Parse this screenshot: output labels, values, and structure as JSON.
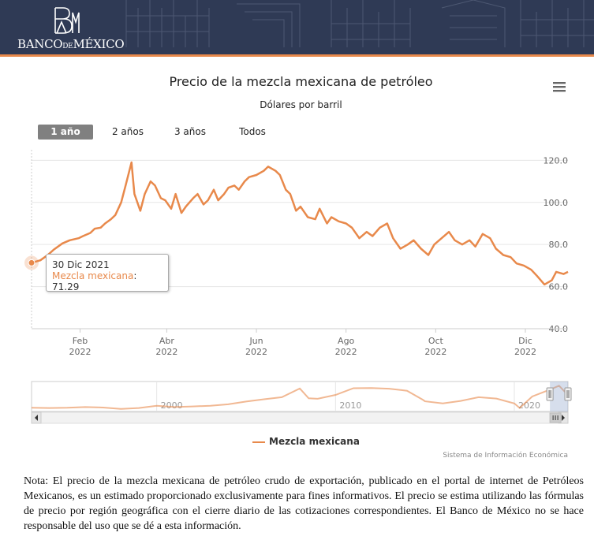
{
  "header": {
    "brand": "BANCO DE MÉXICO",
    "brand_parts": [
      "BANCO",
      "DE",
      "MÉXICO"
    ],
    "background_color": "#2f3a55",
    "accent_color": "#e8894b"
  },
  "menu_icon": "hamburger-menu-icon",
  "range_selector": {
    "buttons": [
      "1 año",
      "2 años",
      "3 años",
      "Todos"
    ],
    "selected": "1 año"
  },
  "tooltip": {
    "date": "30 Dic 2021",
    "series": "Mezcla mexicana",
    "value": "71.29"
  },
  "legend": {
    "label": "Mezcla mexicana"
  },
  "credits": "Sistema de Información Económica",
  "note": "Nota: El precio de la mezcla mexicana de petróleo crudo de exportación, publicado en el portal de internet de Petróleos Mexicanos, es un estimado proporcionado exclusivamente para fines informativos. El precio se estima utilizando las fórmulas de precio por región geográfica con el cierre diario de las cotizaciones correspondientes. El Banco de México no se hace responsable del uso que se dé a esta información.",
  "chart_data": {
    "type": "line",
    "title": "Precio de la mezcla mexicana de petróleo",
    "subtitle": "Dólares por barril",
    "series_color": "#e8894b",
    "series": [
      {
        "name": "Mezcla mexicana",
        "x": [
          "2021-12-30",
          "2022-01-05",
          "2022-01-10",
          "2022-01-14",
          "2022-01-20",
          "2022-01-25",
          "2022-01-31",
          "2022-02-03",
          "2022-02-08",
          "2022-02-11",
          "2022-02-15",
          "2022-02-18",
          "2022-02-22",
          "2022-02-25",
          "2022-03-01",
          "2022-03-04",
          "2022-03-08",
          "2022-03-10",
          "2022-03-14",
          "2022-03-17",
          "2022-03-21",
          "2022-03-24",
          "2022-03-28",
          "2022-03-31",
          "2022-04-04",
          "2022-04-07",
          "2022-04-11",
          "2022-04-14",
          "2022-04-19",
          "2022-04-22",
          "2022-04-26",
          "2022-04-29",
          "2022-05-03",
          "2022-05-06",
          "2022-05-10",
          "2022-05-13",
          "2022-05-17",
          "2022-05-20",
          "2022-05-24",
          "2022-05-27",
          "2022-06-01",
          "2022-06-06",
          "2022-06-09",
          "2022-06-14",
          "2022-06-17",
          "2022-06-21",
          "2022-06-24",
          "2022-06-28",
          "2022-07-01",
          "2022-07-06",
          "2022-07-11",
          "2022-07-14",
          "2022-07-19",
          "2022-07-22",
          "2022-07-27",
          "2022-08-01",
          "2022-08-05",
          "2022-08-10",
          "2022-08-15",
          "2022-08-19",
          "2022-08-24",
          "2022-08-29",
          "2022-09-02",
          "2022-09-07",
          "2022-09-12",
          "2022-09-16",
          "2022-09-21",
          "2022-09-26",
          "2022-09-30",
          "2022-10-05",
          "2022-10-10",
          "2022-10-14",
          "2022-10-19",
          "2022-10-24",
          "2022-10-28",
          "2022-11-02",
          "2022-11-07",
          "2022-11-11",
          "2022-11-16",
          "2022-11-21",
          "2022-11-25",
          "2022-11-30",
          "2022-12-05",
          "2022-12-09",
          "2022-12-14",
          "2022-12-19",
          "2022-12-22",
          "2022-12-27",
          "2022-12-30"
        ],
        "values": [
          71.29,
          72.5,
          75,
          77.5,
          80.5,
          82,
          83,
          84,
          85.5,
          87.5,
          88,
          90,
          92,
          94,
          100,
          108,
          119,
          104,
          96,
          104,
          110,
          108,
          102,
          101,
          97,
          104,
          95,
          98,
          102,
          104,
          99,
          101,
          106,
          101,
          104,
          107,
          108,
          106,
          110,
          112,
          113,
          115,
          117,
          115,
          113,
          106,
          104,
          96,
          98,
          93,
          92,
          97,
          90,
          93,
          91,
          90,
          88,
          83,
          86,
          84,
          88,
          90,
          83,
          78,
          80,
          82,
          78,
          75,
          80,
          83,
          86,
          82,
          80,
          82,
          79,
          85,
          83,
          78,
          75,
          74,
          71,
          70,
          68,
          65,
          61,
          63,
          67,
          66,
          67
        ]
      }
    ],
    "xlim": [
      "2021-12-30",
      "2022-12-30"
    ],
    "x_tick_labels": [
      {
        "date": "2022-02-01",
        "month": "Feb",
        "year": "2022"
      },
      {
        "date": "2022-04-01",
        "month": "Abr",
        "year": "2022"
      },
      {
        "date": "2022-06-01",
        "month": "Jun",
        "year": "2022"
      },
      {
        "date": "2022-08-01",
        "month": "Ago",
        "year": "2022"
      },
      {
        "date": "2022-10-01",
        "month": "Oct",
        "year": "2022"
      },
      {
        "date": "2022-12-01",
        "month": "Dic",
        "year": "2022"
      }
    ],
    "ylim": [
      40,
      125
    ],
    "y_ticks": [
      "40.0",
      "60.0",
      "80.0",
      "100.0",
      "120.0"
    ],
    "y_axis_side": "right",
    "grid": true,
    "legend_position": "bottom-center",
    "navigator": {
      "xlim": [
        1993,
        2023
      ],
      "tick_labels": [
        "2000",
        "2010",
        "2020"
      ],
      "ylim": [
        0,
        130
      ],
      "x": [
        1993,
        1994,
        1995,
        1996,
        1997,
        1998,
        1999,
        2000,
        2001,
        2002,
        2003,
        2004,
        2005,
        2006,
        2007,
        2008,
        2008.5,
        2009,
        2010,
        2011,
        2012,
        2013,
        2014,
        2014.9,
        2015,
        2016,
        2017,
        2018,
        2019,
        2020,
        2020.3,
        2021,
        2022,
        2022.5,
        2023
      ],
      "values": [
        16,
        15,
        16,
        19,
        17,
        11,
        15,
        25,
        19,
        22,
        25,
        31,
        43,
        53,
        62,
        100,
        57,
        55,
        72,
        101,
        102,
        99,
        90,
        50,
        44,
        35,
        46,
        62,
        56,
        35,
        15,
        65,
        95,
        112,
        71
      ],
      "selected_range": [
        2021.99,
        2023
      ]
    }
  }
}
